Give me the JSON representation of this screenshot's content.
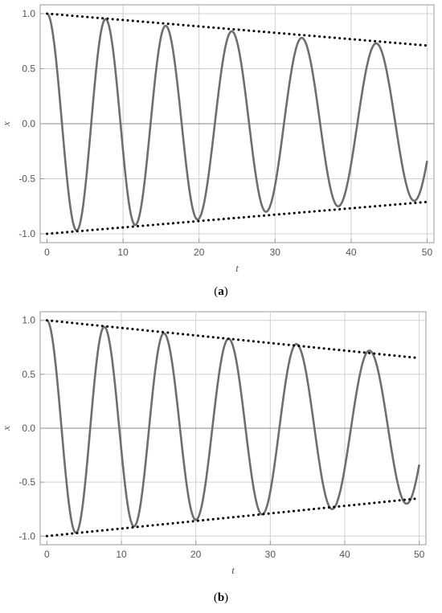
{
  "chart_data": [
    {
      "type": "line",
      "panel": "a",
      "caption_prefix": "(",
      "caption_letter": "a",
      "caption_suffix": ")",
      "xlabel": "t",
      "ylabel": "x",
      "xlim": [
        0,
        50
      ],
      "ylim": [
        -1.0,
        1.0
      ],
      "xticks": [
        0,
        10,
        20,
        30,
        40,
        50
      ],
      "yticks": [
        -1.0,
        -0.5,
        0.0,
        0.5,
        1.0
      ],
      "ytick_labels": [
        "-1.0",
        "-0.5",
        "0.0",
        "0.5",
        "1.0"
      ],
      "grid": true,
      "series": [
        {
          "style": "solid",
          "color": "#6e6e6e",
          "x": [
            0,
            3.9,
            7.7,
            11.6,
            15.6,
            19.8,
            24.3,
            28.8,
            33.5,
            38.3,
            43.3,
            48.3,
            50
          ],
          "y": [
            1.0,
            -0.97,
            0.95,
            -0.92,
            0.89,
            -0.87,
            0.84,
            -0.8,
            0.78,
            -0.75,
            0.73,
            -0.7,
            -0.42
          ]
        },
        {
          "style": "dotted",
          "color": "#000000",
          "x": [
            0,
            50
          ],
          "y": [
            1.0,
            0.71
          ]
        },
        {
          "style": "dotted",
          "color": "#000000",
          "x": [
            0,
            50
          ],
          "y": [
            -1.0,
            -0.71
          ]
        }
      ]
    },
    {
      "type": "line",
      "panel": "b",
      "caption_prefix": "(",
      "caption_letter": "b",
      "caption_suffix": ")",
      "xlabel": "t",
      "ylabel": "x",
      "xlim": [
        0,
        50
      ],
      "ylim": [
        -1.0,
        1.0
      ],
      "xticks": [
        0,
        10,
        20,
        30,
        40,
        50
      ],
      "yticks": [
        -1.0,
        -0.5,
        0.0,
        0.5,
        1.0
      ],
      "ytick_labels": [
        "-1.0",
        "-0.5",
        "0.0",
        "0.5",
        "1.0"
      ],
      "grid": true,
      "series": [
        {
          "style": "solid",
          "color": "#6e6e6e",
          "x": [
            0,
            3.9,
            7.7,
            11.7,
            15.7,
            20.0,
            24.4,
            28.9,
            33.5,
            38.3,
            43.3,
            48.3,
            50
          ],
          "y": [
            1.0,
            -0.97,
            0.94,
            -0.91,
            0.88,
            -0.85,
            0.83,
            -0.8,
            0.78,
            -0.75,
            0.72,
            -0.7,
            -0.42
          ]
        },
        {
          "style": "dotted",
          "color": "#000000",
          "x": [
            0,
            50
          ],
          "y": [
            1.0,
            0.65
          ]
        },
        {
          "style": "dotted",
          "color": "#000000",
          "x": [
            0,
            50
          ],
          "y": [
            -1.0,
            -0.65
          ]
        }
      ]
    }
  ]
}
